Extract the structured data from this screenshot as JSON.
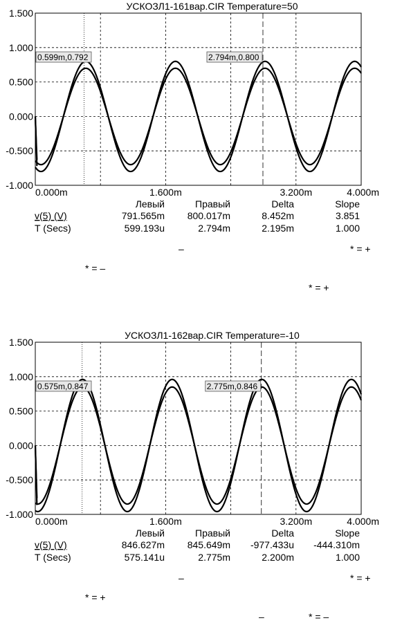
{
  "chart_data": [
    {
      "type": "line",
      "title": "УСКОЗЛ1-161вар.CIR Temperature=50",
      "ylim": [
        -1.0,
        1.5
      ],
      "xlim": [
        0,
        4.0
      ],
      "y_ticks": [
        "1.500",
        "1.000",
        "0.500",
        "0.000",
        "-0.500",
        "-1.000"
      ],
      "x_ticks": [
        {
          "x": 0.0,
          "label": "0.000m"
        },
        {
          "x": 1.6,
          "label": "1.600m"
        },
        {
          "x": 3.2,
          "label": "3.200m"
        },
        {
          "x": 4.0,
          "label": "4.000m"
        }
      ],
      "grid": true,
      "series": [
        {
          "amplitude": 0.8,
          "period_ms": 1.1,
          "peak_ms": 0.62
        },
        {
          "amplitude": 0.7,
          "period_ms": 1.1,
          "peak_ms": 0.62
        }
      ],
      "cursors": [
        {
          "x": 0.599,
          "label": "0.599m,0.792",
          "style": "dotted"
        },
        {
          "x": 2.794,
          "label": "2.794m,0.800",
          "style": "dashed"
        }
      ],
      "stats": {
        "headers": [
          "Левый",
          "Правый",
          "Delta",
          "Slope"
        ],
        "rows": [
          {
            "name": "v(5) (V)",
            "values": [
              "791.565m",
              "800.017m",
              "8.452m",
              "3.851"
            ]
          },
          {
            "name": "T (Secs)",
            "values": [
              "599.193u",
              "2.794m",
              "2.195m",
              "1.000"
            ]
          }
        ]
      }
    },
    {
      "type": "line",
      "title": "УСКОЗЛ1-162вар.CIR Temperature=-10",
      "ylim": [
        -1.0,
        1.5
      ],
      "xlim": [
        0,
        4.0
      ],
      "y_ticks": [
        "1.500",
        "1.000",
        "0.500",
        "0.000",
        "-0.500",
        "-1.000"
      ],
      "x_ticks": [
        {
          "x": 0.0,
          "label": "0.000m"
        },
        {
          "x": 1.6,
          "label": "1.600m"
        },
        {
          "x": 3.2,
          "label": "3.200m"
        },
        {
          "x": 4.0,
          "label": "4.000m"
        }
      ],
      "grid": true,
      "series": [
        {
          "amplitude": 0.96,
          "period_ms": 1.1,
          "peak_ms": 0.58
        },
        {
          "amplitude": 0.85,
          "period_ms": 1.1,
          "peak_ms": 0.58
        }
      ],
      "cursors": [
        {
          "x": 0.575,
          "label": "0.575m,0.847",
          "style": "dotted"
        },
        {
          "x": 2.775,
          "label": "2.775m,0.846",
          "style": "dashed"
        }
      ],
      "stats": {
        "headers": [
          "Левый",
          "Правый",
          "Delta",
          "Slope"
        ],
        "rows": [
          {
            "name": "v(5) (V)",
            "values": [
              "846.627m",
              "845.649m",
              "-977.433u",
              "-444.310m"
            ]
          },
          {
            "name": "T (Secs)",
            "values": [
              "575.141u",
              "2.775m",
              "2.200m",
              "1.000"
            ]
          }
        ]
      }
    }
  ],
  "fragments": {
    "a1": "–",
    "a2": "* = +",
    "a3": "* = –",
    "a4": "* = +",
    "b1": "–",
    "b2": "* = +",
    "b3": "* = +",
    "b4": "–",
    "b5": "* = –"
  }
}
